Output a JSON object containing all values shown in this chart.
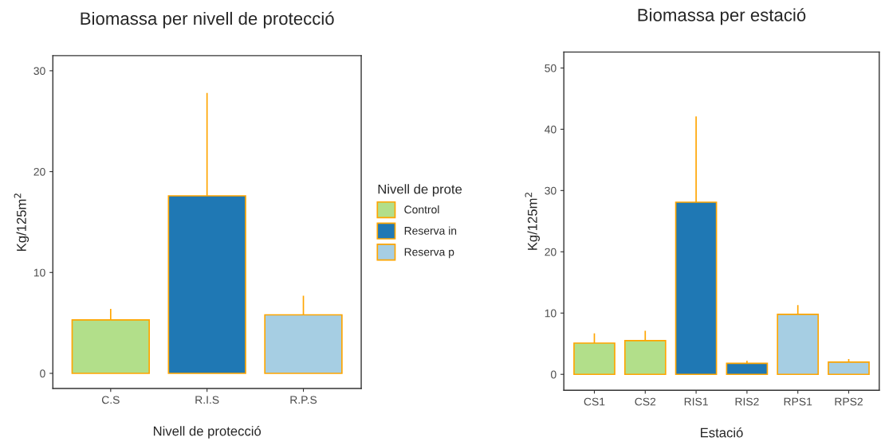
{
  "chart_data": [
    {
      "type": "bar",
      "title": "Biomassa per nivell de protecció",
      "xlabel": "Nivell de protecció",
      "ylabel": "Kg/125m$^{2}$",
      "legend_title": "Nivell de prote",
      "categories": [
        "C.S",
        "R.I.S",
        "R.P.S"
      ],
      "series": [
        {
          "name": "Control",
          "color": "#b2df8a",
          "values": [
            5.3,
            null,
            null
          ],
          "errors": [
            [
              5.3,
              6.4
            ],
            null,
            null
          ]
        },
        {
          "name": "Reserva in",
          "color": "#1f78b4",
          "values": [
            null,
            17.6,
            null
          ],
          "errors": [
            null,
            [
              17.6,
              27.8
            ],
            null
          ]
        },
        {
          "name": "Reserva p",
          "color": "#a6cee3",
          "values": [
            null,
            null,
            5.8
          ],
          "errors": [
            null,
            null,
            [
              5.8,
              7.7
            ]
          ]
        }
      ],
      "ylim": [
        -1.5,
        31.5
      ],
      "yticks": [
        0,
        10,
        20,
        30
      ],
      "grid": false,
      "legend": "right"
    },
    {
      "type": "bar",
      "title": "Biomassa per estació",
      "xlabel": "Estació",
      "ylabel": "Kg/125m$^{2}$",
      "categories": [
        "CS1",
        "CS2",
        "RIS1",
        "RIS2",
        "RPS1",
        "RPS2"
      ],
      "values": [
        5.1,
        5.5,
        28.1,
        1.8,
        9.8,
        2.0
      ],
      "errors": [
        [
          5.1,
          6.7
        ],
        [
          5.5,
          7.1
        ],
        [
          28.1,
          42.1
        ],
        [
          1.8,
          2.2
        ],
        [
          9.8,
          11.3
        ],
        [
          2.0,
          2.5
        ]
      ],
      "colors": [
        "#b2df8a",
        "#b2df8a",
        "#1f78b4",
        "#1f78b4",
        "#a6cee3",
        "#a6cee3"
      ],
      "ylim": [
        -2.6,
        52.6
      ],
      "yticks": [
        0,
        10,
        20,
        30,
        40,
        50
      ],
      "grid": false
    }
  ]
}
